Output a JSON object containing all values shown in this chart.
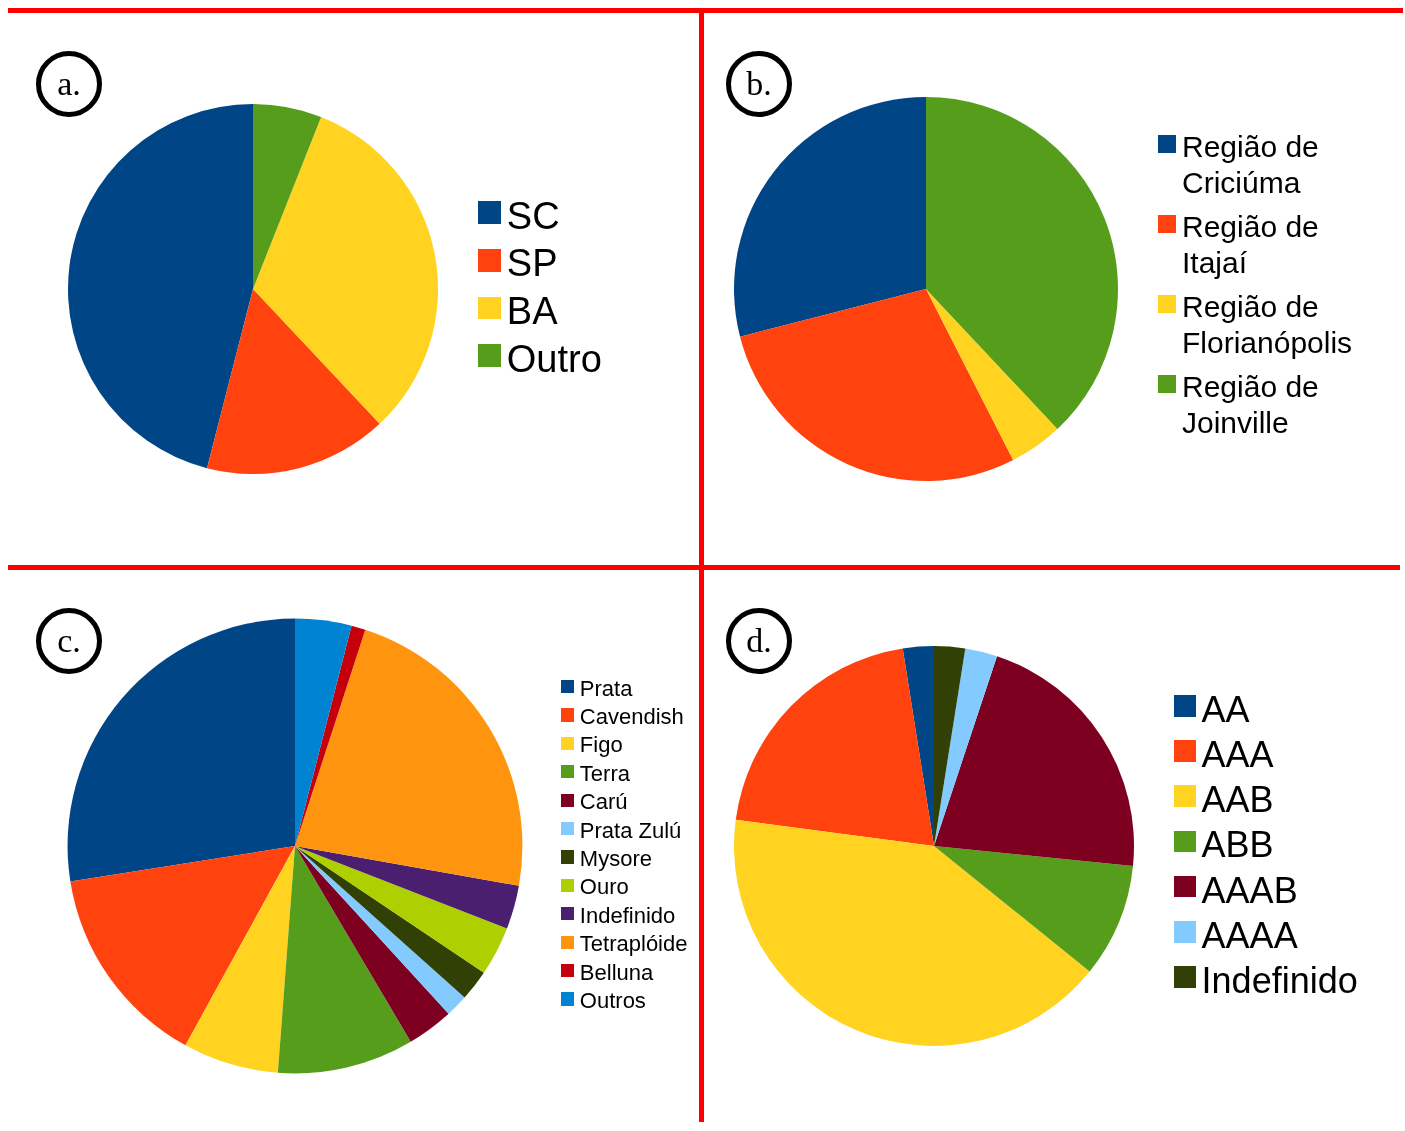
{
  "chart_data": [
    {
      "type": "pie",
      "title": "a.",
      "legend": "right",
      "categories": [
        "SC",
        "SP",
        "BA",
        "Outro"
      ],
      "values": [
        46,
        16,
        32,
        6
      ],
      "colors": [
        "#004586",
        "#ff420e",
        "#ffd320",
        "#579d1c"
      ]
    },
    {
      "type": "pie",
      "title": "b.",
      "legend": "right",
      "categories": [
        "Região de Criciúma",
        "Região de Itajaí",
        "Região de Florianópolis",
        "Região de Joinville"
      ],
      "values": [
        29,
        28.5,
        4.5,
        38
      ],
      "colors": [
        "#004586",
        "#ff420e",
        "#ffd320",
        "#579d1c"
      ]
    },
    {
      "type": "pie",
      "title": "c.",
      "legend": "right",
      "categories": [
        "Prata",
        "Cavendish",
        "Figo",
        "Terra",
        "Carú",
        "Prata Zulú",
        "Mysore",
        "Ouro",
        "Indefinido",
        "Tetraplóide",
        "Belluna",
        "Outros"
      ],
      "values": [
        27.5,
        14.5,
        6.8,
        9.7,
        3.3,
        1.6,
        2.2,
        3.5,
        3.1,
        22.8,
        1,
        4
      ],
      "colors": [
        "#004586",
        "#ff420e",
        "#ffd320",
        "#579d1c",
        "#7e0021",
        "#83caff",
        "#314004",
        "#aecf00",
        "#4b1f6f",
        "#ff950e",
        "#c5000b",
        "#0084d1"
      ]
    },
    {
      "type": "pie",
      "title": "d.",
      "legend": "right",
      "categories": [
        "AA",
        "AAA",
        "AAB",
        "ABB",
        "AAAB",
        "AAAA",
        "Indefinido"
      ],
      "values": [
        2.5,
        20.4,
        41.3,
        9.2,
        21.5,
        2.6,
        2.5
      ],
      "colors": [
        "#004586",
        "#ff420e",
        "#ffd320",
        "#579d1c",
        "#7e0021",
        "#83caff",
        "#314004"
      ]
    }
  ]
}
